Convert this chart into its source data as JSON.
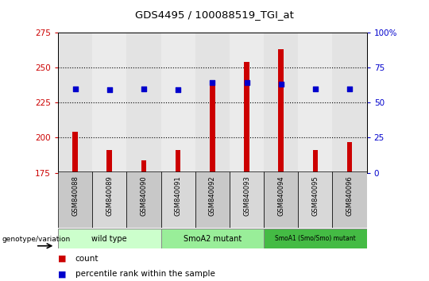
{
  "title": "GDS4495 / 100088519_TGI_at",
  "samples": [
    "GSM840088",
    "GSM840089",
    "GSM840090",
    "GSM840091",
    "GSM840092",
    "GSM840093",
    "GSM840094",
    "GSM840095",
    "GSM840096"
  ],
  "counts": [
    204,
    191,
    184,
    191,
    238,
    254,
    263,
    191,
    197
  ],
  "percentile_ranks": [
    60,
    59,
    60,
    59,
    64,
    64,
    63,
    60,
    60
  ],
  "ylim_left": [
    175,
    275
  ],
  "ylim_right": [
    0,
    100
  ],
  "yticks_left": [
    175,
    200,
    225,
    250,
    275
  ],
  "yticks_right": [
    0,
    25,
    50,
    75,
    100
  ],
  "groups": [
    {
      "label": "wild type",
      "start": 0,
      "end": 3,
      "color": "#ccffcc"
    },
    {
      "label": "SmoA2 mutant",
      "start": 3,
      "end": 6,
      "color": "#99ee99"
    },
    {
      "label": "SmoA1 (Smo/Smo) mutant",
      "start": 6,
      "end": 9,
      "color": "#44bb44"
    }
  ],
  "genotype_label": "genotype/variation",
  "count_color": "#cc0000",
  "percentile_color": "#0000cc",
  "bar_width": 0.15,
  "legend_count": "count",
  "legend_percentile": "percentile rank within the sample",
  "background_color": "#ffffff",
  "plot_bg_color": "#ffffff",
  "tick_label_color_left": "#cc0000",
  "tick_label_color_right": "#0000cc",
  "col_bg_even": "#c8c8c8",
  "col_bg_odd": "#d8d8d8"
}
